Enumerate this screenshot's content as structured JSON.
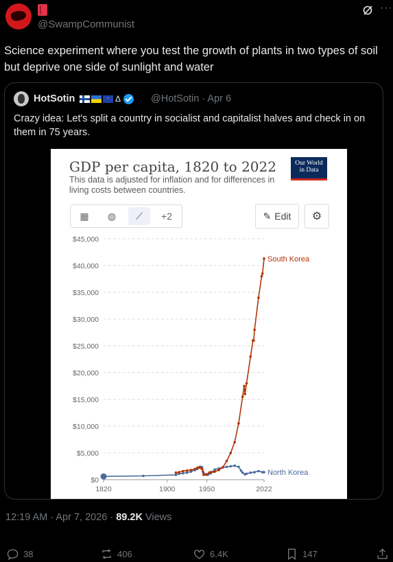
{
  "tweet": {
    "handle": "@SwampCommunist",
    "text": "Science experiment where you test the growth of plants in two types of soil but deprive one side of sunlight and water",
    "timestamp": "12:19 AM · Apr 7, 2026 · ",
    "views_count": "89.2K",
    "views_label": "Views",
    "more_label": "···"
  },
  "quote": {
    "name": "HotSotin",
    "handle": "@HotSotin · Apr 6",
    "delta": "Δ",
    "text": "Crazy idea: Let's split a country in socialist and capitalist halves and check in on them in 75 years."
  },
  "chart_ui": {
    "logo_line1": "Our World",
    "logo_line2": "in Data",
    "tab_extra": "+2",
    "edit_label": "Edit"
  },
  "actions": {
    "replies": "38",
    "reposts": "406",
    "likes": "6.4K",
    "bookmarks": "147"
  },
  "chart_data": {
    "type": "line",
    "title": "GDP per capita, 1820 to 2022",
    "subtitle": "This data is adjusted for inflation and for differences in living costs between countries.",
    "ylim": [
      0,
      45000
    ],
    "xlim": [
      1820,
      2022
    ],
    "y_ticks": [
      "$0",
      "$5,000",
      "$10,000",
      "$15,000",
      "$20,000",
      "$25,000",
      "$30,000",
      "$35,000",
      "$40,000",
      "$45,000"
    ],
    "x_ticks": [
      "1820",
      "1900",
      "1950",
      "2022"
    ],
    "x_tick_values": [
      1820,
      1900,
      1950,
      2022
    ],
    "grid": "horizontal dashed",
    "series": [
      {
        "name": "North Korea",
        "color": "#4c6a9c",
        "x": [
          1820,
          1870,
          1911,
          1915,
          1920,
          1925,
          1930,
          1935,
          1938,
          1940,
          1942,
          1944,
          1946,
          1948,
          1950,
          1952,
          1955,
          1958,
          1960,
          1965,
          1970,
          1975,
          1980,
          1985,
          1990,
          1993,
          1995,
          1998,
          2000,
          2005,
          2010,
          2015,
          2020,
          2022
        ],
        "values": [
          600,
          700,
          900,
          1100,
          1200,
          1300,
          1500,
          1800,
          2000,
          2300,
          2400,
          2300,
          1200,
          1000,
          900,
          1000,
          1200,
          1500,
          1900,
          2100,
          2300,
          2400,
          2500,
          2600,
          2400,
          1700,
          1300,
          1000,
          1100,
          1300,
          1400,
          1600,
          1400,
          1400
        ]
      },
      {
        "name": "South Korea",
        "color": "#b13507",
        "x": [
          1911,
          1915,
          1920,
          1925,
          1930,
          1935,
          1938,
          1940,
          1942,
          1944,
          1945,
          1946,
          1950,
          1953,
          1955,
          1960,
          1965,
          1970,
          1975,
          1980,
          1985,
          1990,
          1995,
          1997,
          1998,
          2000,
          2005,
          2008,
          2009,
          2010,
          2015,
          2019,
          2020,
          2022
        ],
        "values": [
          1300,
          1400,
          1600,
          1700,
          1800,
          2000,
          2200,
          2300,
          2200,
          2000,
          1500,
          900,
          1000,
          1300,
          1400,
          1500,
          1800,
          2300,
          3500,
          5000,
          7000,
          10500,
          15500,
          17500,
          16000,
          18000,
          23000,
          26000,
          26000,
          28000,
          34000,
          38000,
          38500,
          41300
        ]
      }
    ],
    "labels": [
      "South Korea",
      "North Korea"
    ]
  }
}
